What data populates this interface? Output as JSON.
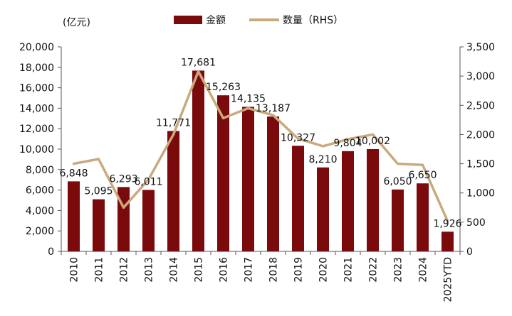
{
  "chart_data": {
    "type": "bar+line",
    "unit_label": "(亿元)",
    "categories": [
      "2010",
      "2011",
      "2012",
      "2013",
      "2014",
      "2015",
      "2016",
      "2017",
      "2018",
      "2019",
      "2020",
      "2021",
      "2022",
      "2023",
      "2024",
      "2025YTD"
    ],
    "series": [
      {
        "name": "金额",
        "kind": "bar",
        "axis": "left",
        "values": [
          6848,
          5095,
          6293,
          6011,
          11771,
          17681,
          15263,
          14135,
          13187,
          10327,
          8210,
          9804,
          10002,
          6050,
          6650,
          1926
        ],
        "labels": [
          "6,848",
          "5,095",
          "6,293",
          "6,011",
          "11,771",
          "17,681",
          "15,263",
          "14,135",
          "13,187",
          "10,327",
          "8,210",
          "9,804",
          "10,002",
          "6,050",
          "6,650",
          "1,926"
        ]
      },
      {
        "name": "数量（RHS）",
        "kind": "line",
        "axis": "right",
        "values": [
          1500,
          1580,
          750,
          1230,
          2000,
          3080,
          2280,
          2450,
          2330,
          1930,
          1800,
          1920,
          2000,
          1500,
          1480,
          520
        ]
      }
    ],
    "ylim_left": [
      0,
      20000
    ],
    "ylim_right": [
      0,
      3500
    ],
    "yticks_left": [
      "0",
      "2,000",
      "4,000",
      "6,000",
      "8,000",
      "10,000",
      "12,000",
      "14,000",
      "16,000",
      "18,000",
      "20,000"
    ],
    "yticks_right": [
      "0",
      "500",
      "1,000",
      "1,500",
      "2,000",
      "2,500",
      "3,000",
      "3,500"
    ],
    "legend_position": "top",
    "colors": {
      "bar": "#7a0a0c",
      "line": "#c8aa7e",
      "axis": "#555555"
    }
  }
}
